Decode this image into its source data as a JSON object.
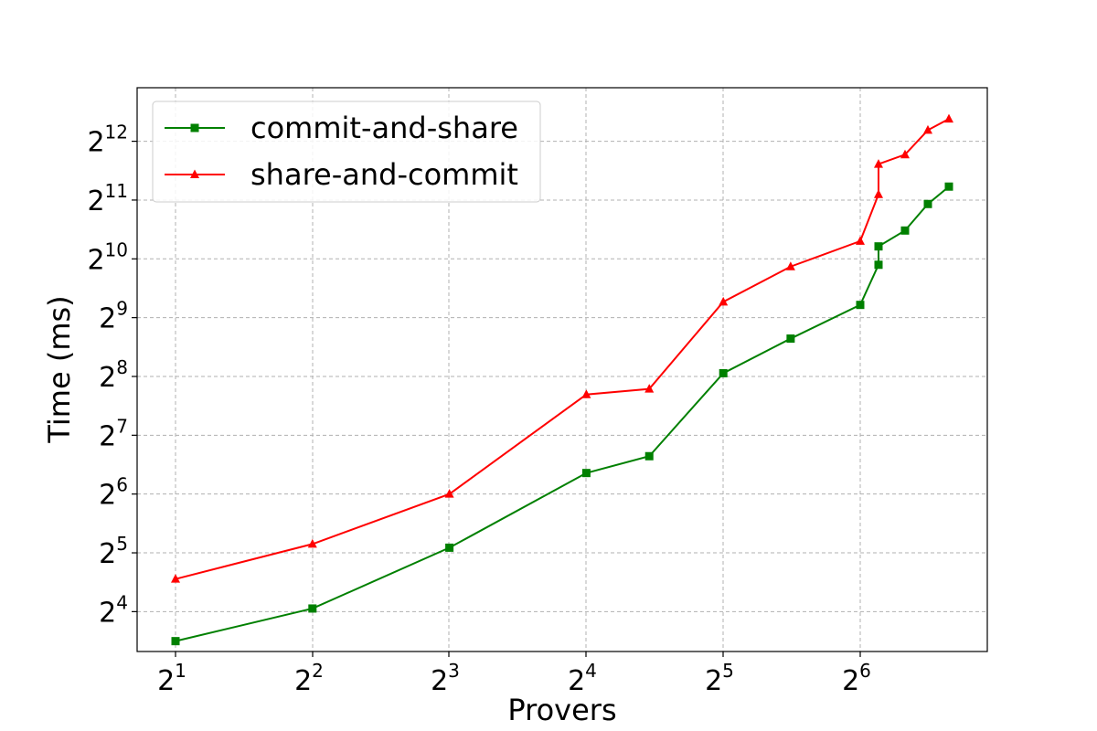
{
  "chart_data": {
    "type": "line",
    "title": "",
    "xlabel": "Provers",
    "ylabel": "Time (ms)",
    "x_scale": "log2",
    "y_scale": "log2",
    "xlim": [
      1.76,
      100.0
    ],
    "ylim": [
      10.0,
      7700.0
    ],
    "x_ticks": [
      {
        "value": 2,
        "base": "2",
        "exp": "1"
      },
      {
        "value": 4,
        "base": "2",
        "exp": "2"
      },
      {
        "value": 8,
        "base": "2",
        "exp": "3"
      },
      {
        "value": 16,
        "base": "2",
        "exp": "4"
      },
      {
        "value": 32,
        "base": "2",
        "exp": "5"
      },
      {
        "value": 64,
        "base": "2",
        "exp": "6"
      }
    ],
    "y_ticks": [
      {
        "value": 16,
        "base": "2",
        "exp": "4"
      },
      {
        "value": 32,
        "base": "2",
        "exp": "5"
      },
      {
        "value": 64,
        "base": "2",
        "exp": "6"
      },
      {
        "value": 128,
        "base": "2",
        "exp": "7"
      },
      {
        "value": 256,
        "base": "2",
        "exp": "8"
      },
      {
        "value": 512,
        "base": "2",
        "exp": "9"
      },
      {
        "value": 1024,
        "base": "2",
        "exp": "10"
      },
      {
        "value": 2048,
        "base": "2",
        "exp": "11"
      },
      {
        "value": 4096,
        "base": "2",
        "exp": "12"
      }
    ],
    "grid": true,
    "legend_position": "top-left",
    "series": [
      {
        "name": "commit-and-share",
        "color": "#008000",
        "marker": "square",
        "points": [
          {
            "x": 2,
            "y": 11.3
          },
          {
            "x": 4,
            "y": 16.6
          },
          {
            "x": 8,
            "y": 34.0
          },
          {
            "x": 16,
            "y": 82.0
          },
          {
            "x": 22,
            "y": 100.0
          },
          {
            "x": 32,
            "y": 266.0
          },
          {
            "x": 45,
            "y": 400.0
          },
          {
            "x": 64,
            "y": 595.0
          },
          {
            "x": 90,
            "y": 955.0
          },
          {
            "x": 73,
            "y": 1186.0
          },
          {
            "x": 128,
            "y": 1430.0
          },
          {
            "x": 105,
            "y": 1955.0
          },
          {
            "x": 160,
            "y": 2400.0
          }
        ]
      },
      {
        "name": "share-and-commit",
        "color": "#ff0000",
        "marker": "triangle",
        "points": [
          {
            "x": 2,
            "y": 23.5
          },
          {
            "x": 4,
            "y": 35.5
          },
          {
            "x": 8,
            "y": 64.0
          },
          {
            "x": 16,
            "y": 207.0
          },
          {
            "x": 22,
            "y": 221.0
          },
          {
            "x": 32,
            "y": 617.0
          },
          {
            "x": 45,
            "y": 935.0
          },
          {
            "x": 64,
            "y": 1262.0
          },
          {
            "x": 90,
            "y": 2190.0
          },
          {
            "x": 73,
            "y": 3130.0
          },
          {
            "x": 128,
            "y": 3500.0
          },
          {
            "x": 105,
            "y": 4670.0
          },
          {
            "x": 160,
            "y": 5330.0
          }
        ]
      }
    ]
  }
}
